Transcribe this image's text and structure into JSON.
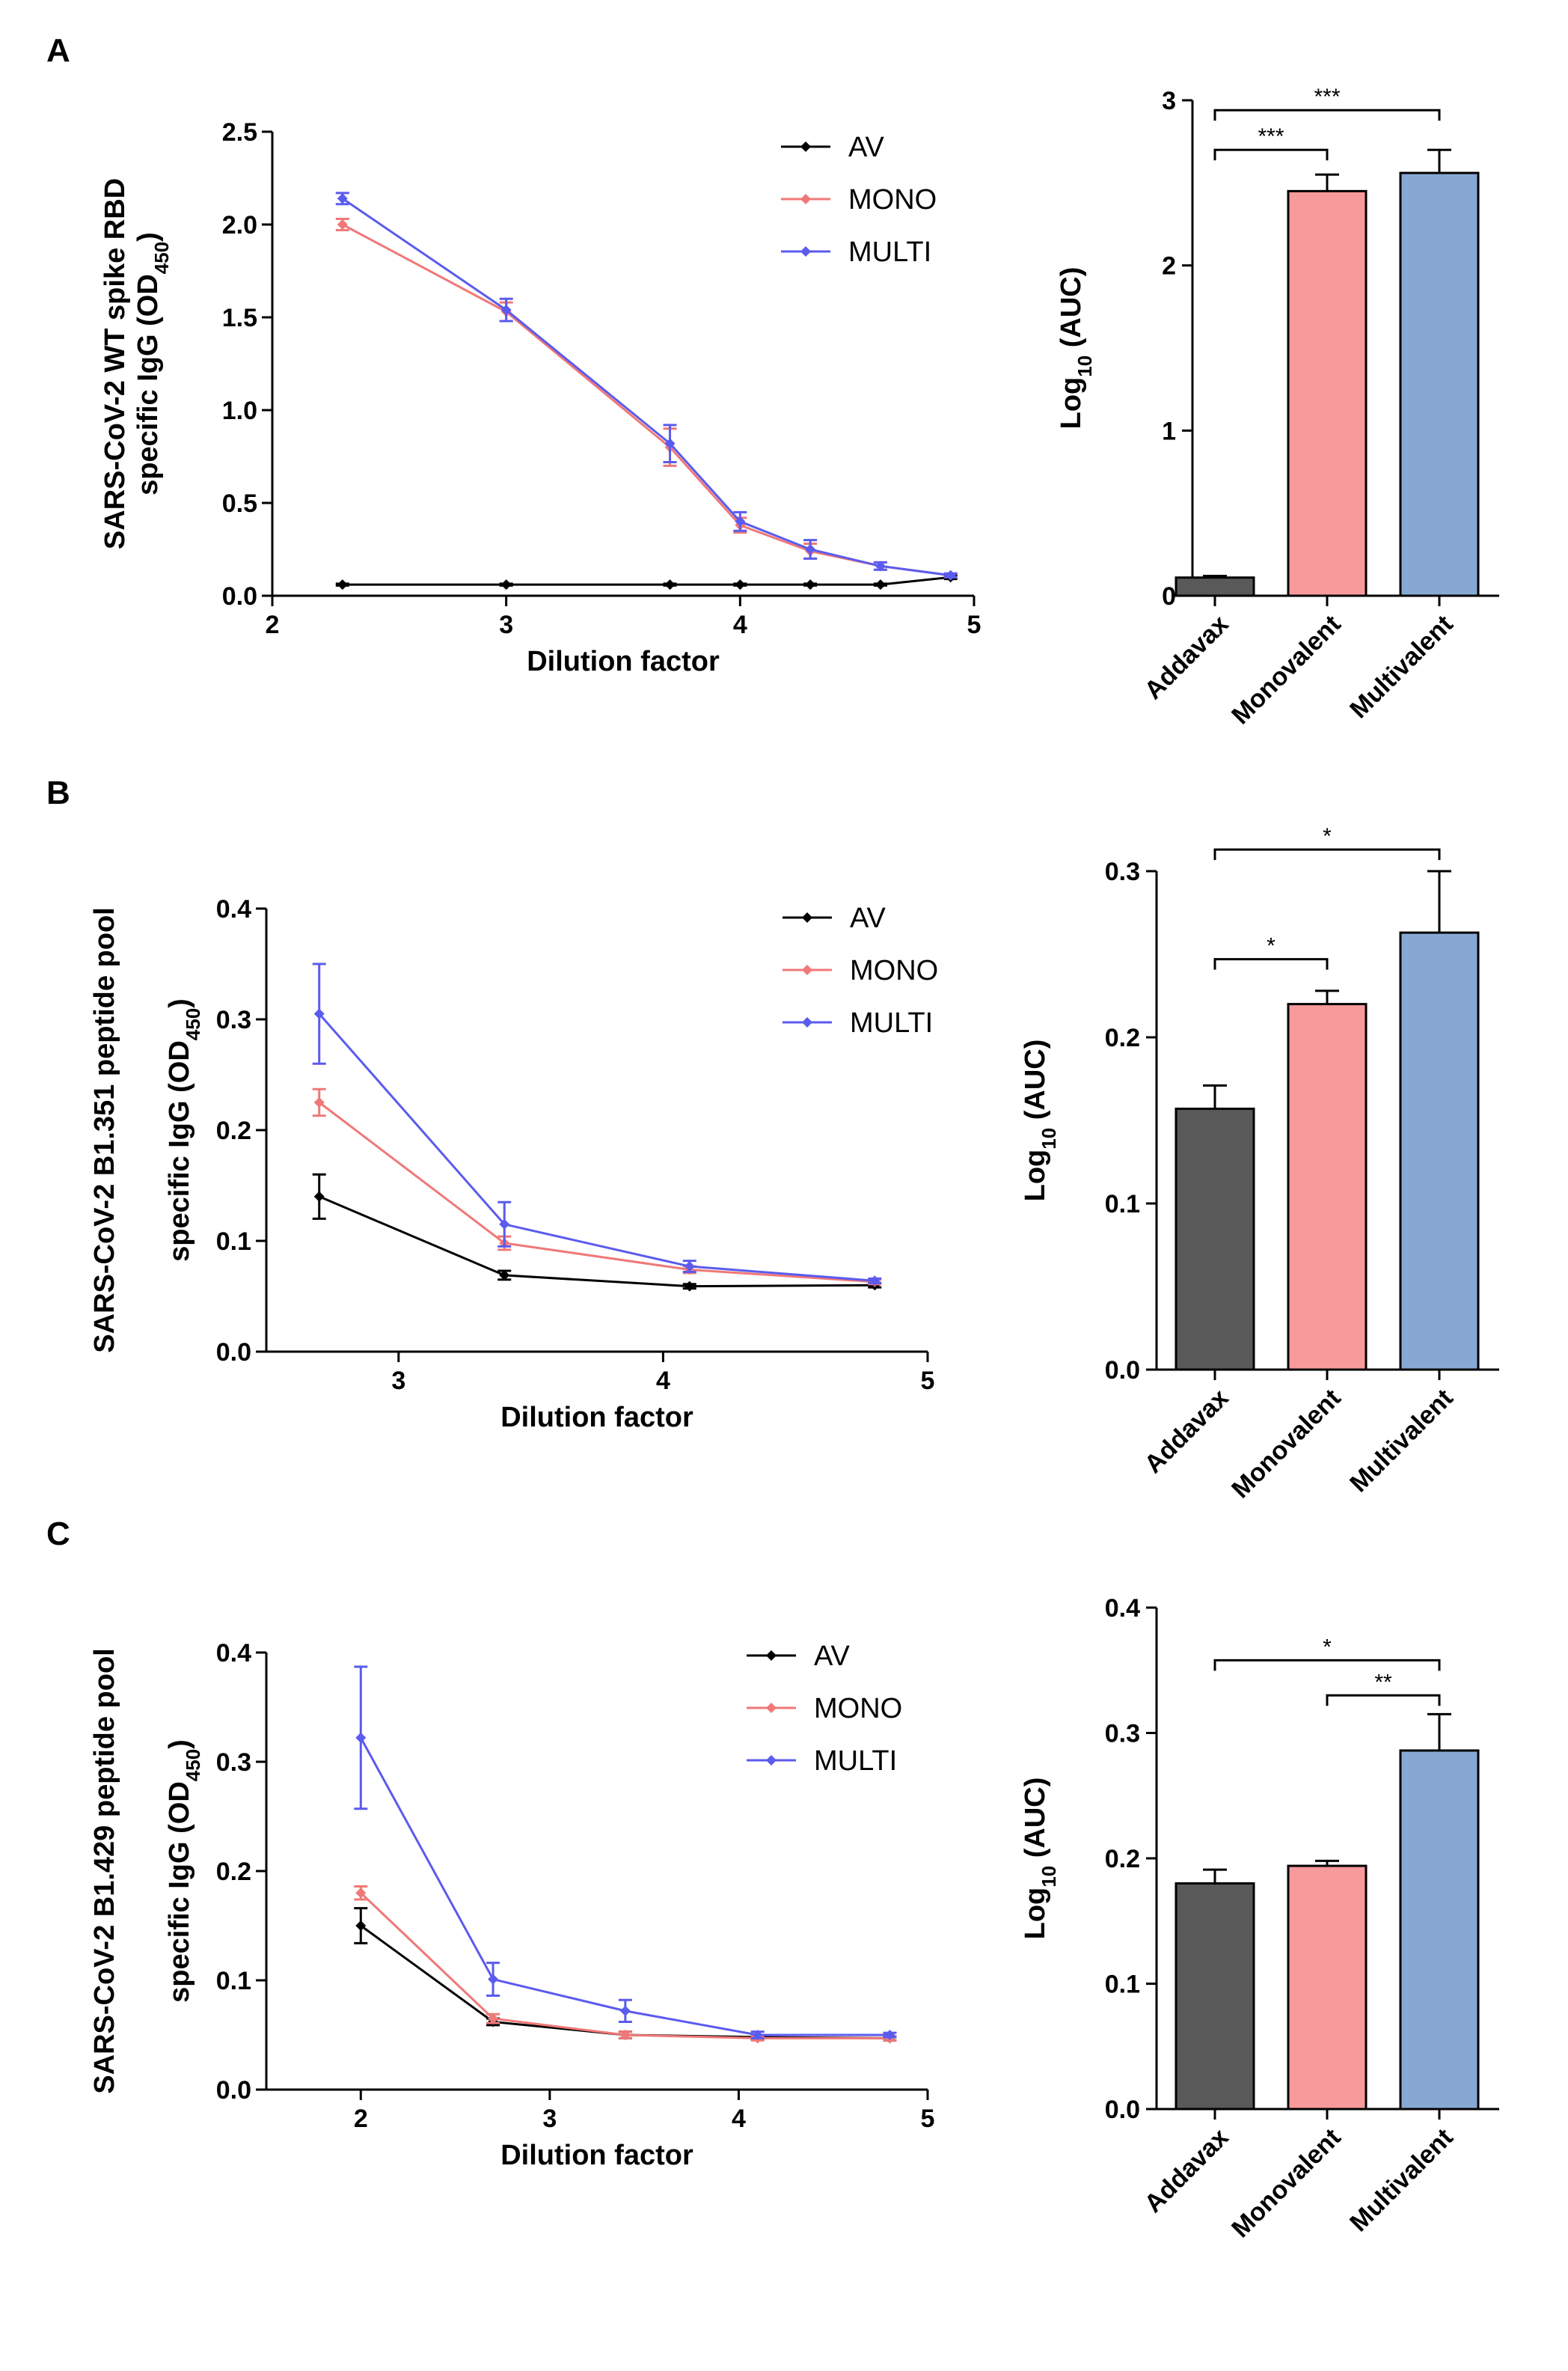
{
  "colors": {
    "AV": "#000000",
    "MONO": "#f07878",
    "MULTI": "#5b5bee",
    "bar_Addavax": "#595959",
    "bar_Monovalent": "#f79a9b",
    "bar_Multivalent": "#88a8d4"
  },
  "chart_data": [
    {
      "panel": "A",
      "type": "line",
      "ylabel_line1": "SARS-CoV-2 WT spike RBD",
      "ylabel_line2": "specific IgG (OD",
      "ylabel_sub": "450",
      "ylabel_end": ")",
      "xlabel": "Dilution factor",
      "xlim": [
        2,
        5
      ],
      "ylim": [
        0,
        2.5
      ],
      "xticks": [
        2,
        3,
        4,
        5
      ],
      "xtick_labels": [
        "2",
        "3",
        "4",
        "5"
      ],
      "yticks": [
        0,
        0.5,
        1.0,
        1.5,
        2.0,
        2.5
      ],
      "ytick_labels": [
        "0.0",
        "0.5",
        "1.0",
        "1.5",
        "2.0",
        "2.5"
      ],
      "series": [
        {
          "name": "AV",
          "x": [
            2.3,
            3.0,
            3.7,
            4.0,
            4.3,
            4.6,
            4.9
          ],
          "values": [
            0.06,
            0.06,
            0.06,
            0.06,
            0.06,
            0.06,
            0.1
          ],
          "errors": [
            0.005,
            0.005,
            0.005,
            0.005,
            0.005,
            0.005,
            0.01
          ]
        },
        {
          "name": "MONO",
          "x": [
            2.3,
            3.0,
            3.7,
            4.0,
            4.3,
            4.6,
            4.9
          ],
          "values": [
            2.0,
            1.53,
            0.8,
            0.38,
            0.24,
            0.16,
            0.11
          ],
          "errors": [
            0.03,
            0.05,
            0.1,
            0.04,
            0.04,
            0.02,
            0.01
          ]
        },
        {
          "name": "MULTI",
          "x": [
            2.3,
            3.0,
            3.7,
            4.0,
            4.3,
            4.6,
            4.9
          ],
          "values": [
            2.14,
            1.54,
            0.82,
            0.4,
            0.25,
            0.16,
            0.11
          ],
          "errors": [
            0.03,
            0.06,
            0.1,
            0.05,
            0.05,
            0.02,
            0.01
          ]
        }
      ],
      "legend": [
        "AV",
        "MONO",
        "MULTI"
      ]
    },
    {
      "panel": "A",
      "type": "bar",
      "ylabel_main": "Log",
      "ylabel_sub": "10",
      "ylabel_end": " (AUC)",
      "categories": [
        "Addavax",
        "Monovalent",
        "Multivalent"
      ],
      "values": [
        0.11,
        2.45,
        2.56
      ],
      "errors": [
        0.01,
        0.1,
        0.14
      ],
      "ylim": [
        0,
        3
      ],
      "yticks": [
        0,
        1,
        2,
        3
      ],
      "ytick_labels": [
        "0",
        "1",
        "2",
        "3"
      ],
      "significance": [
        {
          "from": 0,
          "to": 1,
          "label": "***",
          "y": 2.7
        },
        {
          "from": 0,
          "to": 2,
          "label": "***",
          "y": 2.94
        }
      ]
    },
    {
      "panel": "B",
      "type": "line",
      "ylabel_line1": "SARS-CoV-2 B1.351 peptide pool",
      "ylabel_line2": "specific IgG (OD",
      "ylabel_sub": "450",
      "ylabel_end": ")",
      "xlabel": "Dilution factor",
      "xlim": [
        2.5,
        5
      ],
      "ylim": [
        0,
        0.4
      ],
      "xticks": [
        3,
        4,
        5
      ],
      "xtick_labels": [
        "3",
        "4",
        "5"
      ],
      "yticks": [
        0,
        0.1,
        0.2,
        0.3,
        0.4
      ],
      "ytick_labels": [
        "0.0",
        "0.1",
        "0.2",
        "0.3",
        "0.4"
      ],
      "series": [
        {
          "name": "AV",
          "x": [
            2.7,
            3.4,
            4.1,
            4.8
          ],
          "values": [
            0.14,
            0.069,
            0.059,
            0.06
          ],
          "errors": [
            0.02,
            0.004,
            0.002,
            0.002
          ]
        },
        {
          "name": "MONO",
          "x": [
            2.7,
            3.4,
            4.1,
            4.8
          ],
          "values": [
            0.225,
            0.098,
            0.074,
            0.063
          ],
          "errors": [
            0.012,
            0.006,
            0.003,
            0.002
          ]
        },
        {
          "name": "MULTI",
          "x": [
            2.7,
            3.4,
            4.1,
            4.8
          ],
          "values": [
            0.305,
            0.115,
            0.077,
            0.064
          ],
          "errors": [
            0.045,
            0.02,
            0.005,
            0.002
          ]
        }
      ],
      "legend": [
        "AV",
        "MONO",
        "MULTI"
      ]
    },
    {
      "panel": "B",
      "type": "bar",
      "ylabel_main": "Log",
      "ylabel_sub": "10",
      "ylabel_end": " (AUC)",
      "categories": [
        "Addavax",
        "Monovalent",
        "Multivalent"
      ],
      "values": [
        0.157,
        0.22,
        0.263
      ],
      "errors": [
        0.014,
        0.008,
        0.037
      ],
      "ylim": [
        0,
        0.3
      ],
      "yticks": [
        0,
        0.1,
        0.2,
        0.3
      ],
      "ytick_labels": [
        "0.0",
        "0.1",
        "0.2",
        "0.3"
      ],
      "significance": [
        {
          "from": 0,
          "to": 1,
          "label": "*",
          "y": 0.247
        },
        {
          "from": 0,
          "to": 2,
          "label": "*",
          "y": 0.313
        }
      ]
    },
    {
      "panel": "C",
      "type": "line",
      "ylabel_line1": "SARS-CoV-2 B1.429 peptide pool",
      "ylabel_line2": "specific IgG (OD",
      "ylabel_sub": "450",
      "ylabel_end": ")",
      "xlabel": "Dilution factor",
      "xlim": [
        1.5,
        5
      ],
      "ylim": [
        0,
        0.4
      ],
      "xticks": [
        2,
        3,
        4,
        5
      ],
      "xtick_labels": [
        "2",
        "3",
        "4",
        "5"
      ],
      "yticks": [
        0,
        0.1,
        0.2,
        0.3,
        0.4
      ],
      "ytick_labels": [
        "0.0",
        "0.1",
        "0.2",
        "0.3",
        "0.4"
      ],
      "series": [
        {
          "name": "AV",
          "x": [
            2.0,
            2.7,
            3.4,
            4.1,
            4.8
          ],
          "values": [
            0.15,
            0.062,
            0.05,
            0.048,
            0.047
          ],
          "errors": [
            0.016,
            0.003,
            0.003,
            0.002,
            0.002
          ]
        },
        {
          "name": "MONO",
          "x": [
            2.0,
            2.7,
            3.4,
            4.1,
            4.8
          ],
          "values": [
            0.18,
            0.065,
            0.05,
            0.047,
            0.047
          ],
          "errors": [
            0.006,
            0.004,
            0.003,
            0.002,
            0.002
          ]
        },
        {
          "name": "MULTI",
          "x": [
            2.0,
            2.7,
            3.4,
            4.1,
            4.8
          ],
          "values": [
            0.322,
            0.101,
            0.072,
            0.05,
            0.05
          ],
          "errors": [
            0.065,
            0.015,
            0.01,
            0.003,
            0.002
          ]
        }
      ],
      "legend": [
        "AV",
        "MONO",
        "MULTI"
      ]
    },
    {
      "panel": "C",
      "type": "bar",
      "ylabel_main": "Log",
      "ylabel_sub": "10",
      "ylabel_end": " (AUC)",
      "categories": [
        "Addavax",
        "Monovalent",
        "Multivalent"
      ],
      "values": [
        0.18,
        0.194,
        0.286
      ],
      "errors": [
        0.011,
        0.004,
        0.029
      ],
      "ylim": [
        0,
        0.4
      ],
      "yticks": [
        0,
        0.1,
        0.2,
        0.3,
        0.4
      ],
      "ytick_labels": [
        "0.0",
        "0.1",
        "0.2",
        "0.3",
        "0.4"
      ],
      "significance": [
        {
          "from": 1,
          "to": 2,
          "label": "**",
          "y": 0.33
        },
        {
          "from": 0,
          "to": 2,
          "label": "*",
          "y": 0.358
        }
      ]
    }
  ]
}
